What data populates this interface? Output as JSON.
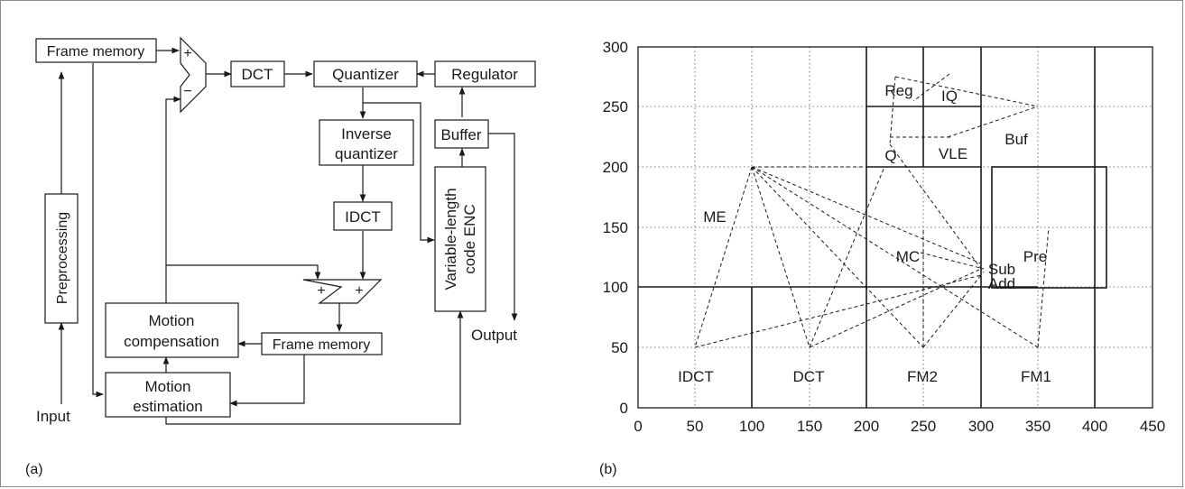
{
  "panel_a": {
    "label": "(a)",
    "blocks": {
      "frame_memory_top": "Frame memory",
      "preprocessing": "Preprocessing",
      "dct": "DCT",
      "quantizer": "Quantizer",
      "regulator": "Regulator",
      "buffer": "Buffer",
      "inverse_quantizer_l1": "Inverse",
      "inverse_quantizer_l2": "quantizer",
      "idct": "IDCT",
      "vlc_l1": "Variable-length",
      "vlc_l2": "code ENC",
      "motion_comp_l1": "Motion",
      "motion_comp_l2": "compensation",
      "frame_memory_bottom": "Frame memory",
      "motion_est_l1": "Motion",
      "motion_est_l2": "estimation"
    },
    "signs": {
      "sub_plus": "+",
      "sub_minus": "−",
      "add_left": "+",
      "add_right": "+"
    },
    "input_label": "Input",
    "output_label": "Output"
  },
  "panel_b": {
    "label": "(b)",
    "x_ticks": [
      "0",
      "50",
      "100",
      "150",
      "200",
      "250",
      "300",
      "350",
      "400",
      "450"
    ],
    "y_ticks": [
      "0",
      "50",
      "100",
      "150",
      "200",
      "250",
      "300"
    ],
    "modules": {
      "me": "ME",
      "mc": "MC",
      "reg": "Reg",
      "iq": "IQ",
      "q": "Q",
      "vle": "VLE",
      "buf": "Buf",
      "sub": "Sub",
      "add": "Add",
      "pre": "Pre",
      "idct": "IDCT",
      "dct": "DCT",
      "fm2": "FM2",
      "fm1": "FM1"
    }
  }
}
